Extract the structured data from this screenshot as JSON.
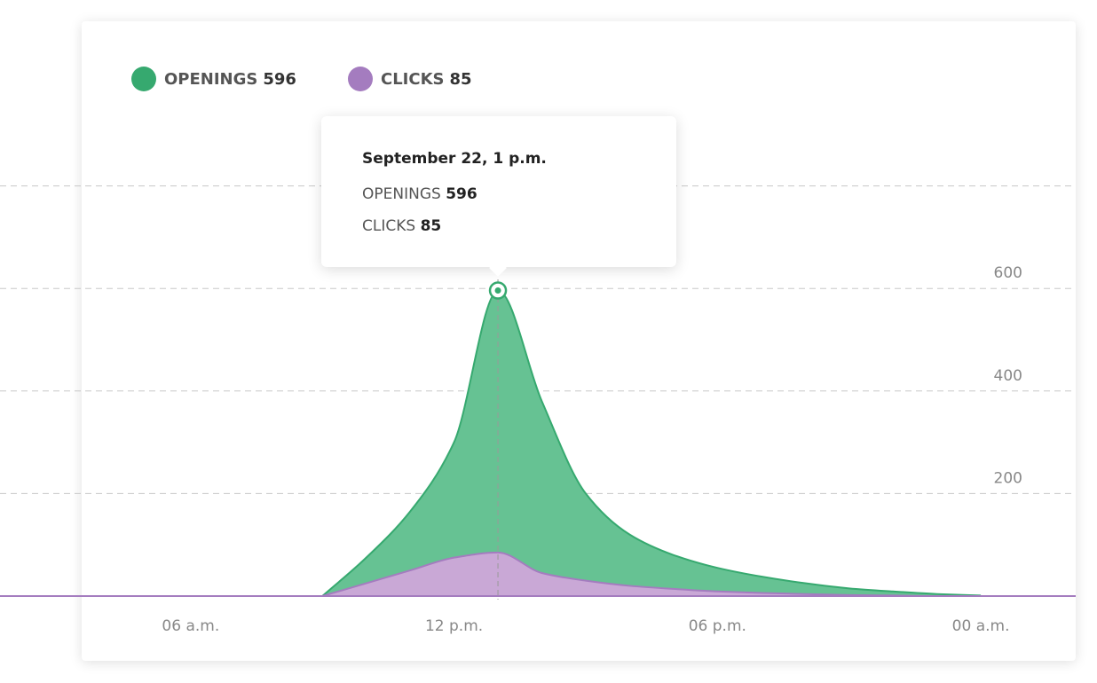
{
  "chart_data": {
    "type": "area",
    "x": [
      9,
      10,
      11,
      12,
      13,
      14,
      15,
      16,
      17,
      18,
      19,
      20,
      21,
      22,
      23,
      24
    ],
    "series": [
      {
        "name": "OPENINGS",
        "total": 596,
        "color": "#36a96f",
        "fill": "#66c293",
        "values": [
          0,
          75,
          165,
          300,
          596,
          380,
          200,
          120,
          80,
          55,
          38,
          25,
          15,
          9,
          4,
          1
        ]
      },
      {
        "name": "CLICKS",
        "total": 85,
        "color": "#a47cbf",
        "fill": "#c9a8d6",
        "values": [
          0,
          25,
          50,
          75,
          85,
          45,
          30,
          20,
          14,
          9,
          6,
          4,
          2,
          1,
          0,
          0
        ]
      }
    ],
    "xlim": [
      2,
      26
    ],
    "xticks": [
      {
        "value": 6,
        "label": "06 a.m."
      },
      {
        "value": 12,
        "label": "12 p.m."
      },
      {
        "value": 18,
        "label": "06 p.m."
      },
      {
        "value": 24,
        "label": "00 a.m."
      }
    ],
    "ylim": [
      0,
      1000
    ],
    "yticks": [
      200,
      400,
      600
    ],
    "ygrid": [
      200,
      400,
      600,
      800
    ],
    "tooltip": {
      "title": "September 22, 1 p.m.",
      "x": 13
    }
  }
}
